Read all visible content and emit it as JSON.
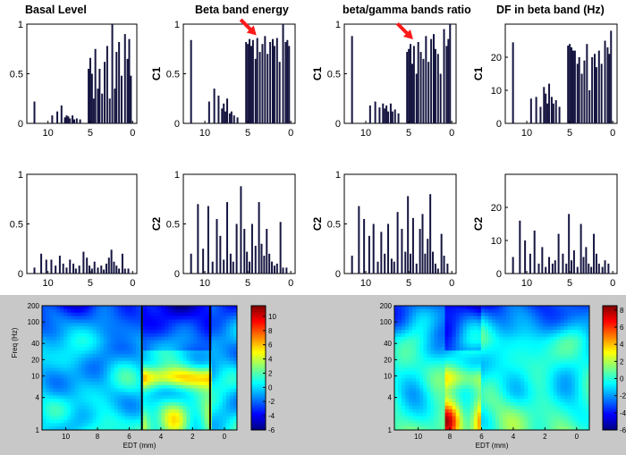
{
  "panel_titles": [
    "Basal Level",
    "Beta band energy",
    "beta/gamma bands ratio",
    "DF in beta band (Hz)"
  ],
  "row_labels": [
    "C1",
    "C2"
  ],
  "colors": {
    "bar": "#151540",
    "arrow": "#ff1a1a",
    "strip_bg": "#c8c8c8",
    "marker_line": "#000000"
  },
  "chart_data": [
    {
      "type": "bar",
      "panel": "basal-c1",
      "title": "Basal Level",
      "ylabel": "",
      "xlim": [
        12.5,
        -0.5
      ],
      "ylim": [
        0,
        1
      ],
      "xticks": [
        10,
        5,
        0
      ],
      "yticks": [
        0,
        0.5,
        1
      ],
      "ytick_labels": [
        "0",
        "0.5",
        "1"
      ],
      "x": [
        11.6,
        9.5,
        8.9,
        8.4,
        8.0,
        7.8,
        7.6,
        7.4,
        7.1,
        6.9,
        6.6,
        6.2,
        5.2,
        5.0,
        4.8,
        4.6,
        4.4,
        4.1,
        3.9,
        3.6,
        3.3,
        3.0,
        2.7,
        2.4,
        2.1,
        1.9,
        1.6,
        1.3,
        0.9,
        0.6,
        0.4,
        0.2
      ],
      "values": [
        0.22,
        0.08,
        0.12,
        0.18,
        0.06,
        0.08,
        0.07,
        0.05,
        0.08,
        0.04,
        0.05,
        0.04,
        0.55,
        0.66,
        0.5,
        0.25,
        0.75,
        0.35,
        0.55,
        0.3,
        0.62,
        0.78,
        0.25,
        1.0,
        0.35,
        0.72,
        0.82,
        0.48,
        0.9,
        0.65,
        0.85,
        0.48
      ],
      "arrow_at": null
    },
    {
      "type": "bar",
      "panel": "beta-c1",
      "title": "Beta band energy",
      "ylabel": "C1",
      "xlim": [
        12.5,
        -0.5
      ],
      "ylim": [
        0,
        1
      ],
      "xticks": [
        10,
        5,
        0
      ],
      "yticks": [
        0,
        0.5,
        1
      ],
      "ytick_labels": [
        "0",
        "0.5",
        "1"
      ],
      "x": [
        11.6,
        9.5,
        8.9,
        8.4,
        8.0,
        7.8,
        7.6,
        7.4,
        7.1,
        6.9,
        6.6,
        6.2,
        5.2,
        5.0,
        4.8,
        4.6,
        4.4,
        4.1,
        3.9,
        3.6,
        3.3,
        3.0,
        2.7,
        2.4,
        2.1,
        1.9,
        1.6,
        1.3,
        0.9,
        0.6,
        0.4,
        0.2
      ],
      "values": [
        0.84,
        0.22,
        0.35,
        0.28,
        0.15,
        0.2,
        0.12,
        0.25,
        0.1,
        0.12,
        0.08,
        0.06,
        0.82,
        0.8,
        0.85,
        0.78,
        0.84,
        0.65,
        0.86,
        0.72,
        0.8,
        0.88,
        0.7,
        0.82,
        0.85,
        0.78,
        0.86,
        0.62,
        1.0,
        0.82,
        0.84,
        0.78
      ],
      "arrow_at": {
        "x": 4.0,
        "y": 0.86
      }
    },
    {
      "type": "bar",
      "panel": "ratio-c1",
      "title": "beta/gamma bands ratio",
      "ylabel": "C1",
      "xlim": [
        12.5,
        -0.5
      ],
      "ylim": [
        0,
        1
      ],
      "xticks": [
        10,
        5,
        0
      ],
      "yticks": [
        0,
        0.5,
        1
      ],
      "ytick_labels": [
        "0",
        "0.5",
        "1"
      ],
      "x": [
        11.6,
        9.5,
        8.9,
        8.4,
        8.0,
        7.8,
        7.6,
        7.4,
        7.1,
        6.9,
        6.6,
        6.2,
        5.2,
        5.0,
        4.8,
        4.6,
        4.4,
        4.1,
        3.9,
        3.6,
        3.3,
        3.0,
        2.7,
        2.4,
        2.1,
        1.9,
        1.6,
        1.3,
        0.9,
        0.6,
        0.4,
        0.2
      ],
      "values": [
        0.88,
        0.18,
        0.22,
        0.16,
        0.2,
        0.15,
        0.18,
        0.12,
        0.2,
        0.12,
        0.14,
        0.1,
        0.72,
        0.75,
        0.8,
        0.6,
        0.78,
        0.5,
        0.82,
        0.72,
        0.65,
        0.88,
        0.62,
        0.85,
        0.9,
        0.75,
        0.7,
        0.5,
        0.95,
        0.78,
        0.85,
        1.0
      ],
      "arrow_at": {
        "x": 4.5,
        "y": 0.82
      }
    },
    {
      "type": "bar",
      "panel": "df-c1",
      "title": "DF in beta band (Hz)",
      "ylabel": "C1",
      "xlim": [
        12.5,
        -0.5
      ],
      "ylim": [
        0,
        30
      ],
      "xticks": [
        10,
        5,
        0
      ],
      "yticks": [
        0,
        10,
        20
      ],
      "ytick_labels": [
        "0",
        "10",
        "20"
      ],
      "x": [
        11.6,
        9.5,
        8.9,
        8.4,
        8.0,
        7.8,
        7.6,
        7.4,
        7.1,
        6.9,
        6.6,
        6.2,
        5.2,
        5.0,
        4.8,
        4.6,
        4.4,
        4.1,
        3.9,
        3.6,
        3.3,
        3.0,
        2.7,
        2.4,
        2.1,
        1.9,
        1.6,
        1.3,
        0.9,
        0.6,
        0.4,
        0.2
      ],
      "values": [
        24.5,
        7.5,
        8,
        5,
        11,
        9,
        6,
        12,
        8,
        6,
        7,
        5,
        23.5,
        24,
        23,
        22,
        22,
        18,
        20,
        15,
        19,
        24,
        10,
        20,
        21,
        17,
        22,
        18,
        25,
        23,
        21,
        28
      ],
      "arrow_at": null
    },
    {
      "type": "bar",
      "panel": "basal-c2",
      "title": "",
      "ylabel": "",
      "xlim": [
        12.5,
        -0.5
      ],
      "ylim": [
        0,
        1
      ],
      "xticks": [
        10,
        5,
        0
      ],
      "yticks": [
        0,
        0.5,
        1
      ],
      "ytick_labels": [
        "0",
        "0.5",
        "1"
      ],
      "x": [
        11.6,
        10.8,
        10.2,
        9.6,
        9.1,
        8.6,
        8.2,
        7.8,
        7.4,
        7.0,
        6.7,
        6.3,
        5.8,
        5.4,
        5.1,
        4.8,
        4.5,
        4.1,
        3.7,
        3.4,
        3.1,
        2.8,
        2.5,
        2.2,
        1.9,
        1.6,
        1.2,
        0.9,
        0.5
      ],
      "values": [
        0.06,
        0.2,
        0.14,
        0.14,
        0.08,
        0.18,
        0.1,
        0.06,
        0.14,
        0.1,
        0.05,
        0.08,
        0.22,
        0.16,
        0.08,
        0.05,
        0.12,
        0.06,
        0.08,
        0.04,
        0.1,
        0.16,
        0.24,
        0.12,
        0.08,
        0.05,
        0.2,
        0.05,
        0.05
      ],
      "arrow_at": null
    },
    {
      "type": "bar",
      "panel": "beta-c2",
      "title": "",
      "ylabel": "C2",
      "xlim": [
        12.5,
        -0.5
      ],
      "ylim": [
        0,
        1
      ],
      "xticks": [
        10,
        5,
        0
      ],
      "yticks": [
        0,
        0.5,
        1
      ],
      "ytick_labels": [
        "0",
        "0.5",
        "1"
      ],
      "x": [
        11.6,
        10.8,
        10.2,
        9.6,
        9.1,
        8.6,
        8.2,
        7.8,
        7.4,
        7.0,
        6.7,
        6.3,
        5.8,
        5.4,
        5.1,
        4.8,
        4.5,
        4.1,
        3.7,
        3.4,
        3.1,
        2.8,
        2.5,
        2.2,
        1.9,
        1.6,
        1.2,
        0.9,
        0.5
      ],
      "values": [
        0.2,
        0.7,
        0.25,
        0.68,
        0.12,
        0.55,
        0.38,
        0.14,
        0.72,
        0.2,
        0.12,
        0.5,
        0.88,
        0.45,
        0.22,
        0.12,
        0.5,
        0.28,
        0.72,
        0.3,
        0.18,
        0.45,
        0.2,
        0.12,
        0.08,
        0.1,
        0.52,
        0.06,
        0.06
      ],
      "arrow_at": null
    },
    {
      "type": "bar",
      "panel": "ratio-c2",
      "title": "",
      "ylabel": "C2",
      "xlim": [
        12.5,
        -0.5
      ],
      "ylim": [
        0,
        1
      ],
      "xticks": [
        10,
        5,
        0
      ],
      "yticks": [
        0,
        0.5,
        1
      ],
      "ytick_labels": [
        "0",
        "0.5",
        "1"
      ],
      "x": [
        11.6,
        10.8,
        10.2,
        9.6,
        9.1,
        8.6,
        8.2,
        7.8,
        7.4,
        7.0,
        6.7,
        6.3,
        5.8,
        5.4,
        5.1,
        4.8,
        4.5,
        4.1,
        3.7,
        3.4,
        3.1,
        2.8,
        2.5,
        2.2,
        1.9,
        1.6,
        1.2,
        0.9,
        0.5
      ],
      "values": [
        0.18,
        0.68,
        0.55,
        0.38,
        0.5,
        0.12,
        0.42,
        0.2,
        0.5,
        0.15,
        0.12,
        0.62,
        0.45,
        0.22,
        0.78,
        0.2,
        0.56,
        0.1,
        0.45,
        0.6,
        0.2,
        0.35,
        0.8,
        0.22,
        0.1,
        0.05,
        0.4,
        0.18,
        0.1
      ],
      "arrow_at": null
    },
    {
      "type": "bar",
      "panel": "df-c2",
      "title": "",
      "ylabel": "C2",
      "xlim": [
        12.5,
        -0.5
      ],
      "ylim": [
        0,
        30
      ],
      "xticks": [
        10,
        5,
        0
      ],
      "yticks": [
        0,
        10,
        20
      ],
      "ytick_labels": [
        "0",
        "10",
        "20"
      ],
      "x": [
        11.6,
        10.8,
        10.2,
        9.6,
        9.1,
        8.6,
        8.2,
        7.8,
        7.4,
        7.0,
        6.7,
        6.3,
        5.8,
        5.4,
        5.1,
        4.8,
        4.5,
        4.1,
        3.7,
        3.4,
        3.1,
        2.8,
        2.5,
        2.2,
        1.9,
        1.6,
        1.2,
        0.9,
        0.5
      ],
      "values": [
        5,
        16,
        10,
        6,
        13,
        3,
        8,
        2,
        5,
        3,
        4,
        12,
        6,
        3,
        18,
        4,
        7,
        2,
        15,
        5,
        8,
        3,
        2,
        12,
        6,
        3,
        2,
        4,
        3
      ],
      "arrow_at": null
    },
    {
      "type": "heatmap",
      "panel": "tf-c1",
      "title": "",
      "ylabel": "Freq (Hz)",
      "xlabel": "EDT (mm)",
      "xlim": [
        11.5,
        -0.8
      ],
      "ylim_log": [
        1,
        200
      ],
      "xticks": [
        10,
        8,
        6,
        4,
        2,
        0
      ],
      "yticks": [
        1,
        4,
        10,
        20,
        40,
        100,
        200
      ],
      "colorbar_ticks": [
        -6,
        -4,
        -2,
        0,
        2,
        4,
        6,
        8,
        10
      ],
      "colorbar_range": [
        -6,
        11.5
      ],
      "markers_edt": [
        5.2,
        0.9
      ],
      "seed": 7,
      "strong_from": 5.2,
      "strong_to": 0.9
    },
    {
      "type": "heatmap",
      "panel": "tf-c2",
      "title": "",
      "ylabel": "",
      "xlabel": "EDT (mm)",
      "xlim": [
        11.5,
        -0.8
      ],
      "ylim_log": [
        1,
        200
      ],
      "xticks": [
        10,
        8,
        6,
        4,
        2,
        0
      ],
      "yticks": [
        1,
        4,
        10,
        20,
        40,
        100,
        200
      ],
      "colorbar_ticks": [
        -6,
        -4,
        -2,
        0,
        2,
        4,
        6,
        8
      ],
      "colorbar_range": [
        -6,
        8.5
      ],
      "markers_edt": [],
      "seed": 13,
      "strong_from": 8.2,
      "strong_to": 6.0
    }
  ]
}
